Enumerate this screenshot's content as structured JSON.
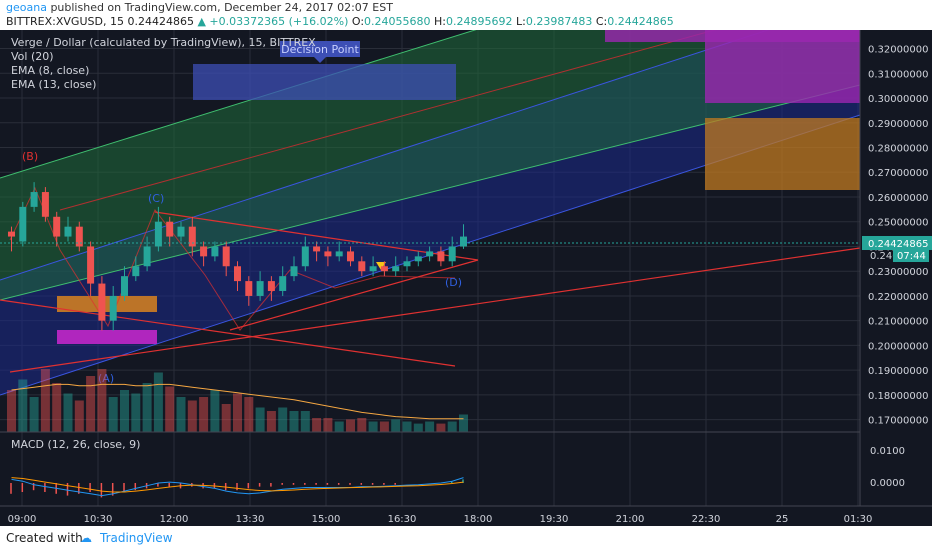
{
  "header": {
    "author": "geoana",
    "published": "published on TradingView.com, December 24, 2017 02:07 EST",
    "symbol": "BITTREX:XVGUSD",
    "interval": "15",
    "last": "0.24424865",
    "change": "+0.03372365 (+16.02%)",
    "open": "0.24055680",
    "high": "0.24895692",
    "low": "0.23987483",
    "close": "0.24424865"
  },
  "legend": {
    "title": "Verge / Dollar (calculated by TradingView), 15, BITTREX",
    "vol": "Vol (20)",
    "ema8": "EMA (8, close)",
    "ema13": "EMA (13, close)"
  },
  "annotations": {
    "decision": "Decision Point",
    "b": "(B)",
    "c": "(C)",
    "a": "(A)",
    "d": "(D)"
  },
  "footer": {
    "created_with": "Created with",
    "brand": "TradingView"
  },
  "colors": {
    "bg": "#131722",
    "grid": "#2a2e39",
    "up": "#26a69a",
    "down": "#ef5350",
    "channel_green": "#1f6b3a",
    "channel_blue": "#1b2a8c",
    "label_red": "#e03131",
    "label_blue": "#3060e0",
    "price_tag": "#26a69a",
    "macd": "#2196f3",
    "signal": "#ff9800"
  },
  "chart_data": {
    "type": "candlestick",
    "ylim": [
      0.165,
      0.33
    ],
    "y_ticks": [
      "0.32000000",
      "0.31000000",
      "0.30000000",
      "0.29000000",
      "0.28000000",
      "0.27000000",
      "0.26000000",
      "0.25000000",
      "0.24000000",
      "0.23000000",
      "0.22000000",
      "0.21000000",
      "0.20000000",
      "0.19000000",
      "0.18000000",
      "0.17000000"
    ],
    "x_ticks": [
      "09:00",
      "10:30",
      "12:00",
      "13:30",
      "15:00",
      "16:30",
      "18:00",
      "19:30",
      "21:00",
      "22:30",
      "25",
      "01:30"
    ],
    "price_label": "0.24424865",
    "price_label_2": "0.240",
    "countdown": "07:44",
    "macd_title": "MACD (12, 26, close, 9)",
    "macd_ticks": [
      "0.0100",
      "0.0000"
    ],
    "candles": [
      [
        0.246,
        0.244,
        0.248,
        0.238
      ],
      [
        0.242,
        0.256,
        0.258,
        0.24
      ],
      [
        0.256,
        0.262,
        0.266,
        0.254
      ],
      [
        0.262,
        0.252,
        0.264,
        0.25
      ],
      [
        0.252,
        0.244,
        0.254,
        0.24
      ],
      [
        0.244,
        0.248,
        0.252,
        0.242
      ],
      [
        0.248,
        0.24,
        0.25,
        0.238
      ],
      [
        0.24,
        0.225,
        0.242,
        0.22
      ],
      [
        0.225,
        0.21,
        0.228,
        0.206
      ],
      [
        0.21,
        0.22,
        0.224,
        0.206
      ],
      [
        0.22,
        0.228,
        0.232,
        0.218
      ],
      [
        0.228,
        0.232,
        0.236,
        0.226
      ],
      [
        0.232,
        0.24,
        0.244,
        0.23
      ],
      [
        0.24,
        0.25,
        0.256,
        0.238
      ],
      [
        0.25,
        0.244,
        0.252,
        0.24
      ],
      [
        0.244,
        0.248,
        0.25,
        0.242
      ],
      [
        0.248,
        0.24,
        0.252,
        0.236
      ],
      [
        0.24,
        0.236,
        0.242,
        0.232
      ],
      [
        0.236,
        0.24,
        0.242,
        0.234
      ],
      [
        0.24,
        0.232,
        0.242,
        0.228
      ],
      [
        0.232,
        0.226,
        0.234,
        0.222
      ],
      [
        0.226,
        0.22,
        0.228,
        0.216
      ],
      [
        0.22,
        0.226,
        0.23,
        0.218
      ],
      [
        0.226,
        0.222,
        0.228,
        0.218
      ],
      [
        0.222,
        0.228,
        0.232,
        0.22
      ],
      [
        0.228,
        0.232,
        0.236,
        0.226
      ],
      [
        0.232,
        0.24,
        0.244,
        0.23
      ],
      [
        0.24,
        0.238,
        0.242,
        0.234
      ],
      [
        0.238,
        0.236,
        0.24,
        0.232
      ],
      [
        0.236,
        0.238,
        0.242,
        0.234
      ],
      [
        0.238,
        0.234,
        0.24,
        0.232
      ],
      [
        0.234,
        0.23,
        0.236,
        0.228
      ],
      [
        0.23,
        0.232,
        0.236,
        0.228
      ],
      [
        0.232,
        0.23,
        0.234,
        0.228
      ],
      [
        0.23,
        0.232,
        0.236,
        0.228
      ],
      [
        0.232,
        0.234,
        0.236,
        0.23
      ],
      [
        0.234,
        0.236,
        0.238,
        0.232
      ],
      [
        0.236,
        0.238,
        0.24,
        0.234
      ],
      [
        0.238,
        0.234,
        0.24,
        0.232
      ],
      [
        0.234,
        0.24,
        0.244,
        0.232
      ],
      [
        0.24,
        0.244,
        0.249,
        0.239
      ]
    ],
    "volume": [
      0.6,
      0.75,
      0.5,
      0.9,
      0.7,
      0.55,
      0.45,
      0.8,
      0.9,
      0.5,
      0.6,
      0.55,
      0.7,
      0.85,
      0.65,
      0.5,
      0.45,
      0.5,
      0.6,
      0.4,
      0.55,
      0.5,
      0.35,
      0.3,
      0.35,
      0.3,
      0.3,
      0.2,
      0.2,
      0.15,
      0.18,
      0.2,
      0.15,
      0.15,
      0.18,
      0.15,
      0.12,
      0.15,
      0.12,
      0.15,
      0.25
    ],
    "volume_ma": [
      0.6,
      0.62,
      0.64,
      0.66,
      0.68,
      0.68,
      0.66,
      0.66,
      0.68,
      0.68,
      0.68,
      0.66,
      0.66,
      0.68,
      0.68,
      0.66,
      0.64,
      0.62,
      0.6,
      0.58,
      0.56,
      0.54,
      0.52,
      0.5,
      0.48,
      0.46,
      0.43,
      0.4,
      0.37,
      0.34,
      0.31,
      0.28,
      0.26,
      0.24,
      0.22,
      0.21,
      0.2,
      0.19,
      0.19,
      0.19,
      0.19
    ],
    "macd_hist": [
      -0.6,
      -0.5,
      -0.4,
      -0.5,
      -0.6,
      -0.7,
      -0.6,
      -0.5,
      -0.8,
      -0.7,
      -0.5,
      -0.4,
      -0.3,
      -0.2,
      -0.2,
      -0.3,
      -0.2,
      -0.3,
      -0.3,
      -0.4,
      -0.4,
      -0.3,
      -0.2,
      -0.2,
      -0.1,
      -0.1,
      -0.1,
      -0.1,
      -0.1,
      -0.1,
      -0.1,
      -0.1,
      -0.1,
      -0.1,
      -0.1,
      0.0,
      0.0,
      0.0,
      0.0,
      0.1,
      0.2
    ],
    "macd_line": [
      0.2,
      0.1,
      -0.1,
      -0.2,
      -0.3,
      -0.4,
      -0.5,
      -0.6,
      -0.7,
      -0.6,
      -0.45,
      -0.3,
      -0.15,
      0.0,
      0.05,
      0.0,
      -0.1,
      -0.2,
      -0.3,
      -0.45,
      -0.55,
      -0.6,
      -0.55,
      -0.45,
      -0.35,
      -0.3,
      -0.25,
      -0.25,
      -0.25,
      -0.25,
      -0.25,
      -0.2,
      -0.2,
      -0.18,
      -0.15,
      -0.12,
      -0.1,
      -0.05,
      0.0,
      0.1,
      0.3
    ],
    "signal_line": [
      0.3,
      0.25,
      0.15,
      0.05,
      -0.05,
      -0.15,
      -0.25,
      -0.35,
      -0.45,
      -0.5,
      -0.5,
      -0.45,
      -0.38,
      -0.3,
      -0.22,
      -0.15,
      -0.12,
      -0.13,
      -0.17,
      -0.23,
      -0.3,
      -0.37,
      -0.42,
      -0.44,
      -0.42,
      -0.39,
      -0.35,
      -0.32,
      -0.3,
      -0.28,
      -0.26,
      -0.24,
      -0.22,
      -0.21,
      -0.19,
      -0.17,
      -0.15,
      -0.12,
      -0.08,
      -0.03,
      0.05
    ]
  }
}
